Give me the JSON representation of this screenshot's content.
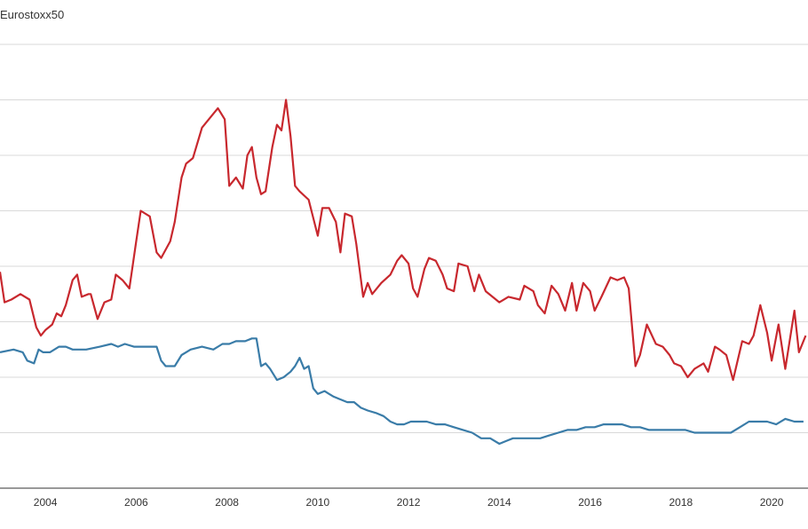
{
  "chart_data": {
    "type": "line",
    "legend_text": "Eurostoxx50",
    "x_ticks": [
      "2004",
      "2006",
      "2008",
      "2010",
      "2012",
      "2014",
      "2016",
      "2018",
      "2020"
    ],
    "xlim": [
      2003.0,
      2020.8
    ],
    "ylim": [
      0,
      8
    ],
    "grid": "horizontal",
    "series": [
      {
        "color": "#c8282e",
        "x": [
          2003.0,
          2003.1,
          2003.25,
          2003.45,
          2003.65,
          2003.8,
          2003.9,
          2004.0,
          2004.15,
          2004.25,
          2004.35,
          2004.45,
          2004.6,
          2004.7,
          2004.8,
          2004.95,
          2005.0,
          2005.15,
          2005.3,
          2005.45,
          2005.55,
          2005.7,
          2005.85,
          2006.0,
          2006.1,
          2006.3,
          2006.45,
          2006.55,
          2006.75,
          2006.85,
          2007.0,
          2007.1,
          2007.25,
          2007.45,
          2007.65,
          2007.8,
          2007.95,
          2008.05,
          2008.2,
          2008.35,
          2008.45,
          2008.55,
          2008.65,
          2008.75,
          2008.85,
          2009.0,
          2009.1,
          2009.2,
          2009.3,
          2009.4,
          2009.5,
          2009.6,
          2009.8,
          2010.0,
          2010.1,
          2010.25,
          2010.4,
          2010.5,
          2010.6,
          2010.75,
          2010.85,
          2011.0,
          2011.1,
          2011.2,
          2011.4,
          2011.6,
          2011.75,
          2011.85,
          2012.0,
          2012.1,
          2012.2,
          2012.35,
          2012.45,
          2012.6,
          2012.75,
          2012.85,
          2013.0,
          2013.1,
          2013.3,
          2013.45,
          2013.55,
          2013.7,
          2013.85,
          2014.0,
          2014.2,
          2014.45,
          2014.55,
          2014.75,
          2014.85,
          2015.0,
          2015.15,
          2015.3,
          2015.45,
          2015.6,
          2015.7,
          2015.85,
          2016.0,
          2016.1,
          2016.25,
          2016.45,
          2016.6,
          2016.75,
          2016.85,
          2017.0,
          2017.1,
          2017.25,
          2017.45,
          2017.6,
          2017.75,
          2017.85,
          2018.0,
          2018.15,
          2018.3,
          2018.5,
          2018.6,
          2018.75,
          2018.85,
          2019.0,
          2019.15,
          2019.35,
          2019.5,
          2019.6,
          2019.75,
          2019.9,
          2020.0,
          2020.15,
          2020.3,
          2020.5,
          2020.6,
          2020.75
        ],
        "values": [
          3.9,
          3.35,
          3.4,
          3.5,
          3.4,
          2.9,
          2.75,
          2.85,
          2.95,
          3.15,
          3.1,
          3.3,
          3.75,
          3.85,
          3.45,
          3.5,
          3.5,
          3.05,
          3.35,
          3.4,
          3.85,
          3.75,
          3.6,
          4.45,
          5.0,
          4.9,
          4.25,
          4.15,
          4.45,
          4.8,
          5.6,
          5.85,
          5.95,
          6.5,
          6.7,
          6.85,
          6.65,
          5.45,
          5.6,
          5.4,
          6.0,
          6.15,
          5.6,
          5.3,
          5.35,
          6.15,
          6.55,
          6.45,
          7.0,
          6.35,
          5.45,
          5.35,
          5.2,
          4.55,
          5.05,
          5.05,
          4.8,
          4.25,
          4.95,
          4.9,
          4.4,
          3.45,
          3.7,
          3.5,
          3.7,
          3.85,
          4.1,
          4.2,
          4.05,
          3.6,
          3.45,
          3.95,
          4.15,
          4.1,
          3.85,
          3.6,
          3.55,
          4.05,
          4.0,
          3.55,
          3.85,
          3.55,
          3.45,
          3.35,
          3.45,
          3.4,
          3.65,
          3.55,
          3.3,
          3.15,
          3.65,
          3.5,
          3.2,
          3.7,
          3.2,
          3.7,
          3.55,
          3.2,
          3.45,
          3.8,
          3.75,
          3.8,
          3.6,
          2.2,
          2.4,
          2.95,
          2.6,
          2.55,
          2.4,
          2.25,
          2.2,
          2.0,
          2.15,
          2.25,
          2.1,
          2.55,
          2.5,
          2.4,
          1.95,
          2.65,
          2.6,
          2.75,
          3.3,
          2.8,
          2.3,
          2.95,
          2.15,
          3.2,
          2.45,
          2.75
        ]
      },
      {
        "color": "#3a7ca8",
        "x": [
          2003.0,
          2003.3,
          2003.5,
          2003.6,
          2003.75,
          2003.85,
          2003.95,
          2004.1,
          2004.3,
          2004.45,
          2004.6,
          2004.75,
          2004.9,
          2005.2,
          2005.45,
          2005.6,
          2005.75,
          2005.95,
          2006.1,
          2006.25,
          2006.45,
          2006.55,
          2006.65,
          2006.85,
          2007.0,
          2007.2,
          2007.45,
          2007.7,
          2007.9,
          2008.05,
          2008.2,
          2008.4,
          2008.55,
          2008.65,
          2008.75,
          2008.85,
          2008.95,
          2009.1,
          2009.25,
          2009.4,
          2009.5,
          2009.6,
          2009.7,
          2009.8,
          2009.9,
          2010.0,
          2010.15,
          2010.25,
          2010.35,
          2010.5,
          2010.65,
          2010.8,
          2010.95,
          2011.1,
          2011.3,
          2011.45,
          2011.6,
          2011.75,
          2011.9,
          2012.05,
          2012.2,
          2012.4,
          2012.6,
          2012.8,
          2013.0,
          2013.2,
          2013.4,
          2013.6,
          2013.8,
          2014.0,
          2014.15,
          2014.3,
          2014.5,
          2014.7,
          2014.9,
          2015.1,
          2015.3,
          2015.5,
          2015.7,
          2015.9,
          2016.1,
          2016.3,
          2016.5,
          2016.7,
          2016.9,
          2017.1,
          2017.3,
          2017.5,
          2017.7,
          2017.9,
          2018.1,
          2018.3,
          2018.5,
          2018.7,
          2018.9,
          2019.1,
          2019.3,
          2019.5,
          2019.7,
          2019.9,
          2020.1,
          2020.3,
          2020.5,
          2020.7
        ],
        "values": [
          2.45,
          2.5,
          2.45,
          2.3,
          2.25,
          2.5,
          2.45,
          2.45,
          2.55,
          2.55,
          2.5,
          2.5,
          2.5,
          2.55,
          2.6,
          2.55,
          2.6,
          2.55,
          2.55,
          2.55,
          2.55,
          2.3,
          2.2,
          2.2,
          2.4,
          2.5,
          2.55,
          2.5,
          2.6,
          2.6,
          2.65,
          2.65,
          2.7,
          2.7,
          2.2,
          2.25,
          2.15,
          1.95,
          2.0,
          2.1,
          2.2,
          2.35,
          2.15,
          2.2,
          1.8,
          1.7,
          1.75,
          1.7,
          1.65,
          1.6,
          1.55,
          1.55,
          1.45,
          1.4,
          1.35,
          1.3,
          1.2,
          1.15,
          1.15,
          1.2,
          1.2,
          1.2,
          1.15,
          1.15,
          1.1,
          1.05,
          1.0,
          0.9,
          0.9,
          0.8,
          0.85,
          0.9,
          0.9,
          0.9,
          0.9,
          0.95,
          1.0,
          1.05,
          1.05,
          1.1,
          1.1,
          1.15,
          1.15,
          1.15,
          1.1,
          1.1,
          1.05,
          1.05,
          1.05,
          1.05,
          1.05,
          1.0,
          1.0,
          1.0,
          1.0,
          1.0,
          1.1,
          1.2,
          1.2,
          1.2,
          1.15,
          1.25,
          1.2,
          1.2
        ]
      }
    ]
  }
}
